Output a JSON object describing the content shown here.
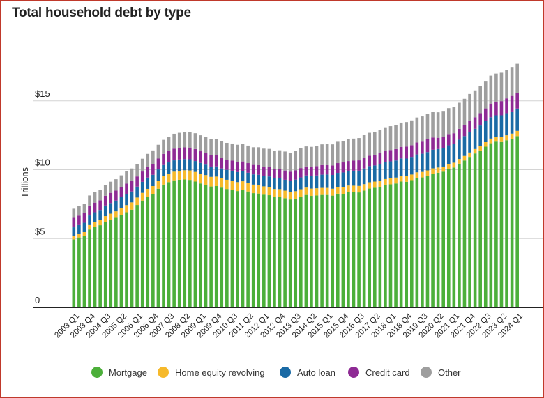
{
  "chart_data": {
    "type": "bar",
    "stacked": true,
    "title": "Total household debt by type",
    "ylabel": "Trillions",
    "xlabel": "",
    "ylim": [
      0,
      18
    ],
    "yticks": [
      {
        "value": 0,
        "label": "0"
      },
      {
        "value": 5,
        "label": "$5"
      },
      {
        "value": 10,
        "label": "$10"
      },
      {
        "value": 15,
        "label": "$15"
      }
    ],
    "grid": true,
    "legend_position": "bottom",
    "categories": [
      "2003 Q1",
      "2003 Q2",
      "2003 Q3",
      "2003 Q4",
      "2004 Q1",
      "2004 Q2",
      "2004 Q3",
      "2004 Q4",
      "2005 Q1",
      "2005 Q2",
      "2005 Q3",
      "2005 Q4",
      "2006 Q1",
      "2006 Q2",
      "2006 Q3",
      "2006 Q4",
      "2007 Q1",
      "2007 Q2",
      "2007 Q3",
      "2007 Q4",
      "2008 Q1",
      "2008 Q2",
      "2008 Q3",
      "2008 Q4",
      "2009 Q1",
      "2009 Q2",
      "2009 Q3",
      "2009 Q4",
      "2010 Q1",
      "2010 Q2",
      "2010 Q3",
      "2010 Q4",
      "2011 Q1",
      "2011 Q2",
      "2011 Q3",
      "2011 Q4",
      "2012 Q1",
      "2012 Q2",
      "2012 Q3",
      "2012 Q4",
      "2013 Q1",
      "2013 Q2",
      "2013 Q3",
      "2013 Q4",
      "2014 Q1",
      "2014 Q2",
      "2014 Q3",
      "2014 Q4",
      "2015 Q1",
      "2015 Q2",
      "2015 Q3",
      "2015 Q4",
      "2016 Q1",
      "2016 Q2",
      "2016 Q3",
      "2016 Q4",
      "2017 Q1",
      "2017 Q2",
      "2017 Q3",
      "2017 Q4",
      "2018 Q1",
      "2018 Q2",
      "2018 Q3",
      "2018 Q4",
      "2019 Q1",
      "2019 Q2",
      "2019 Q3",
      "2019 Q4",
      "2020 Q1",
      "2020 Q2",
      "2020 Q3",
      "2020 Q4",
      "2021 Q1",
      "2021 Q2",
      "2021 Q3",
      "2021 Q4",
      "2022 Q1",
      "2022 Q2",
      "2022 Q3",
      "2022 Q4",
      "2023 Q1",
      "2023 Q2",
      "2023 Q3",
      "2023 Q4",
      "2024 Q1"
    ],
    "xtick_labels": [
      "2003 Q1",
      "2003 Q4",
      "2004 Q3",
      "2005 Q2",
      "2006 Q1",
      "2006 Q4",
      "2007 Q3",
      "2008 Q2",
      "2009 Q1",
      "2009 Q4",
      "2010 Q3",
      "2011 Q2",
      "2012 Q1",
      "2012 Q4",
      "2013 Q3",
      "2014 Q2",
      "2015 Q1",
      "2015 Q4",
      "2016 Q3",
      "2017 Q2",
      "2018 Q1",
      "2018 Q4",
      "2019 Q3",
      "2020 Q2",
      "2021 Q1",
      "2021 Q4",
      "2022 Q3",
      "2023 Q2",
      "2024 Q1"
    ],
    "series": [
      {
        "name": "Mortgage",
        "color": "#4caf3a",
        "values": [
          4.94,
          5.08,
          5.18,
          5.66,
          5.84,
          5.97,
          6.21,
          6.36,
          6.51,
          6.7,
          6.91,
          7.1,
          7.44,
          7.76,
          8.04,
          8.23,
          8.62,
          8.92,
          9.1,
          9.23,
          9.27,
          9.29,
          9.26,
          9.14,
          9.0,
          8.9,
          8.78,
          8.81,
          8.7,
          8.6,
          8.54,
          8.45,
          8.52,
          8.42,
          8.3,
          8.27,
          8.19,
          8.15,
          8.03,
          8.03,
          7.93,
          7.84,
          7.9,
          8.05,
          8.17,
          8.1,
          8.13,
          8.17,
          8.17,
          8.12,
          8.26,
          8.25,
          8.37,
          8.36,
          8.35,
          8.48,
          8.63,
          8.69,
          8.74,
          8.88,
          8.94,
          9.0,
          9.14,
          9.12,
          9.24,
          9.41,
          9.44,
          9.56,
          9.71,
          9.78,
          9.86,
          10.04,
          10.16,
          10.44,
          10.67,
          10.93,
          11.18,
          11.39,
          11.67,
          11.92,
          12.04,
          12.01,
          12.14,
          12.25,
          12.44
        ]
      },
      {
        "name": "Home equity revolving",
        "color": "#f6b92b",
        "values": [
          0.24,
          0.26,
          0.29,
          0.32,
          0.35,
          0.38,
          0.42,
          0.45,
          0.47,
          0.5,
          0.52,
          0.53,
          0.54,
          0.56,
          0.57,
          0.58,
          0.59,
          0.6,
          0.61,
          0.63,
          0.65,
          0.67,
          0.69,
          0.7,
          0.71,
          0.71,
          0.7,
          0.69,
          0.68,
          0.67,
          0.66,
          0.65,
          0.64,
          0.63,
          0.62,
          0.61,
          0.6,
          0.59,
          0.57,
          0.56,
          0.55,
          0.54,
          0.54,
          0.53,
          0.53,
          0.53,
          0.52,
          0.51,
          0.51,
          0.5,
          0.49,
          0.49,
          0.48,
          0.48,
          0.47,
          0.47,
          0.46,
          0.45,
          0.45,
          0.44,
          0.44,
          0.43,
          0.42,
          0.42,
          0.41,
          0.4,
          0.4,
          0.39,
          0.39,
          0.38,
          0.37,
          0.36,
          0.35,
          0.34,
          0.33,
          0.32,
          0.32,
          0.32,
          0.33,
          0.34,
          0.35,
          0.36,
          0.36,
          0.37,
          0.38
        ]
      },
      {
        "name": "Auto loan",
        "color": "#1a6aa5",
        "values": [
          0.64,
          0.64,
          0.68,
          0.7,
          0.72,
          0.73,
          0.77,
          0.77,
          0.78,
          0.8,
          0.82,
          0.79,
          0.79,
          0.8,
          0.82,
          0.82,
          0.81,
          0.82,
          0.82,
          0.82,
          0.82,
          0.81,
          0.81,
          0.79,
          0.78,
          0.76,
          0.75,
          0.74,
          0.71,
          0.72,
          0.73,
          0.73,
          0.73,
          0.73,
          0.74,
          0.75,
          0.75,
          0.77,
          0.78,
          0.78,
          0.79,
          0.81,
          0.84,
          0.86,
          0.88,
          0.9,
          0.93,
          0.96,
          0.97,
          1.0,
          1.02,
          1.06,
          1.07,
          1.09,
          1.11,
          1.14,
          1.17,
          1.17,
          1.21,
          1.22,
          1.23,
          1.24,
          1.26,
          1.27,
          1.28,
          1.3,
          1.32,
          1.33,
          1.35,
          1.34,
          1.36,
          1.37,
          1.37,
          1.4,
          1.44,
          1.46,
          1.47,
          1.5,
          1.52,
          1.55,
          1.56,
          1.58,
          1.6,
          1.61,
          1.62
        ]
      },
      {
        "name": "Credit card",
        "color": "#8e2a94",
        "values": [
          0.69,
          0.69,
          0.69,
          0.72,
          0.7,
          0.7,
          0.71,
          0.74,
          0.72,
          0.73,
          0.74,
          0.77,
          0.74,
          0.75,
          0.77,
          0.8,
          0.79,
          0.81,
          0.82,
          0.85,
          0.84,
          0.85,
          0.85,
          0.87,
          0.85,
          0.83,
          0.81,
          0.8,
          0.76,
          0.74,
          0.73,
          0.73,
          0.71,
          0.7,
          0.69,
          0.7,
          0.68,
          0.67,
          0.67,
          0.68,
          0.67,
          0.67,
          0.67,
          0.68,
          0.66,
          0.67,
          0.68,
          0.7,
          0.68,
          0.69,
          0.71,
          0.73,
          0.71,
          0.73,
          0.75,
          0.78,
          0.76,
          0.78,
          0.81,
          0.83,
          0.82,
          0.83,
          0.84,
          0.87,
          0.85,
          0.87,
          0.88,
          0.93,
          0.89,
          0.82,
          0.81,
          0.82,
          0.77,
          0.79,
          0.8,
          0.86,
          0.84,
          0.89,
          0.93,
          0.99,
          0.99,
          1.03,
          1.08,
          1.13,
          1.12
        ]
      },
      {
        "name": "Other",
        "color": "#9e9e9e",
        "values": [
          0.66,
          0.68,
          0.7,
          0.73,
          0.75,
          0.77,
          0.79,
          0.81,
          0.83,
          0.86,
          0.89,
          0.9,
          0.91,
          0.93,
          0.95,
          0.97,
          1.0,
          1.02,
          1.05,
          1.08,
          1.1,
          1.12,
          1.14,
          1.15,
          1.16,
          1.17,
          1.19,
          1.2,
          1.21,
          1.22,
          1.24,
          1.25,
          1.26,
          1.27,
          1.28,
          1.3,
          1.31,
          1.33,
          1.34,
          1.36,
          1.38,
          1.38,
          1.4,
          1.43,
          1.45,
          1.46,
          1.48,
          1.5,
          1.52,
          1.53,
          1.55,
          1.57,
          1.59,
          1.6,
          1.62,
          1.64,
          1.66,
          1.67,
          1.69,
          1.71,
          1.73,
          1.74,
          1.76,
          1.78,
          1.8,
          1.81,
          1.83,
          1.85,
          1.86,
          1.85,
          1.87,
          1.88,
          1.88,
          1.89,
          1.91,
          1.93,
          1.95,
          1.98,
          2.0,
          2.03,
          2.04,
          2.06,
          2.07,
          2.1,
          2.13
        ]
      }
    ]
  }
}
